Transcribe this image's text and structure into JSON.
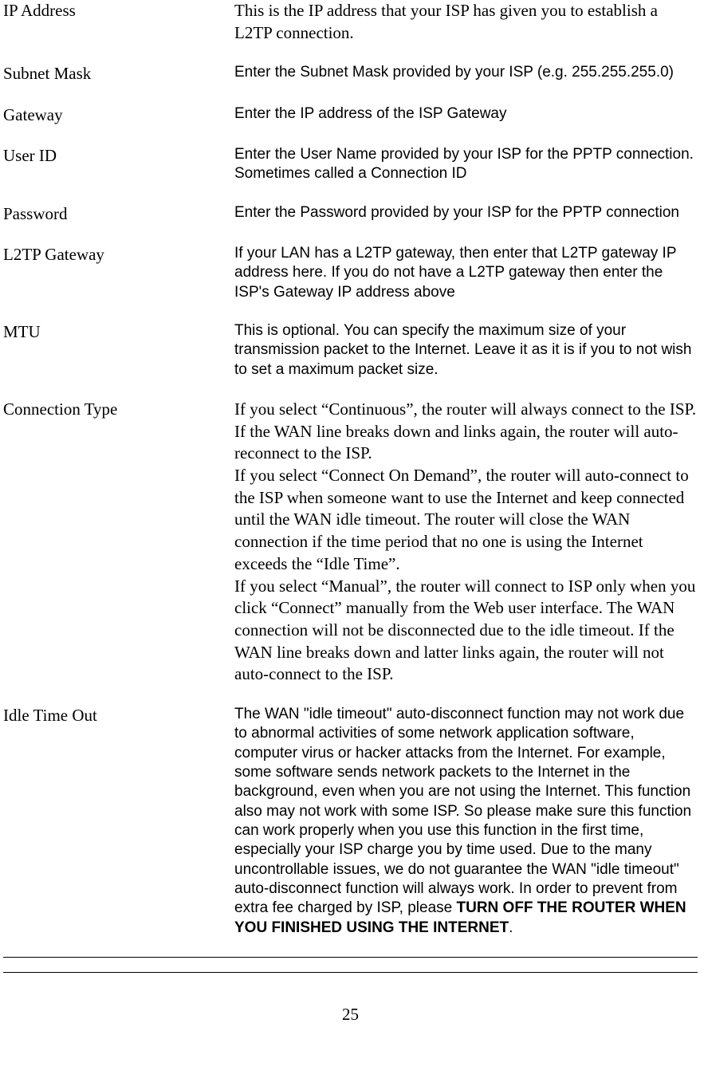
{
  "rows": {
    "ip_address": {
      "label": "IP Address",
      "desc": "This is the IP address that your ISP has given you to establish a L2TP connection."
    },
    "subnet_mask": {
      "label": "Subnet Mask",
      "desc": "Enter the Subnet Mask provided by your ISP (e.g. 255.255.255.0)"
    },
    "gateway": {
      "label": "Gateway",
      "desc": "Enter the IP address of the ISP Gateway"
    },
    "user_id": {
      "label": "User ID",
      "desc": "Enter the User Name provided by your ISP for the PPTP connection. Sometimes called a Connection ID"
    },
    "password": {
      "label": "Password",
      "desc": "Enter the Password provided by your ISP for the PPTP connection"
    },
    "l2tp_gateway": {
      "label": "L2TP Gateway",
      "desc": "If your LAN has a L2TP gateway, then enter that L2TP gateway IP address here. If you do not have a L2TP gateway then enter the ISP's Gateway IP address above"
    },
    "mtu": {
      "label": "MTU",
      "desc": "This is optional. You can specify the maximum size of your transmission packet to the Internet. Leave it as it is if you to not wish to set a maximum packet size."
    },
    "connection_type": {
      "label": "Connection Type",
      "desc": "If you select “Continuous”, the router will always connect to the ISP. If the WAN line breaks down and links again, the router will auto-reconnect to the ISP.\nIf you select “Connect On Demand”, the router will auto-connect to the ISP when someone want to use the Internet and keep connected until the WAN idle timeout. The router will close the WAN connection if the time period that no one is using the Internet exceeds the “Idle Time”.\nIf you select “Manual”, the router will connect to ISP only when you click “Connect” manually from the Web user interface. The WAN connection will not be disconnected due to the idle timeout. If the WAN line breaks down and latter links again, the router will not auto-connect to the ISP."
    },
    "idle_time_out": {
      "label": "Idle Time Out",
      "desc_prefix": "The WAN  \"idle timeout\" auto-disconnect function may not work due to abnormal activities of some network application software, computer virus or hacker attacks from the Internet. For example, some software sends network packets to the Internet in the background, even when you are not using the Internet. This function also may not work with some ISP. So please make sure this function can work properly when you use this function in the first time, especially your ISP charge you by time used. Due to the many uncontrollable issues, we do not guarantee the WAN \"idle timeout\" auto-disconnect function will always work. In order to prevent from extra fee charged by ISP, please ",
      "desc_bold": "TURN OFF THE ROUTER WHEN YOU FINISHED USING THE INTERNET",
      "desc_suffix": "."
    }
  },
  "page_number": "25",
  "colors": {
    "text": "#000000",
    "background": "#ffffff",
    "rule": "#000000"
  },
  "typography": {
    "label_font": "Times New Roman",
    "label_size_pt": 16,
    "desc_sans_font": "Arial",
    "desc_sans_size_pt": 14,
    "desc_serif_font": "Times New Roman",
    "desc_serif_size_pt": 16
  }
}
